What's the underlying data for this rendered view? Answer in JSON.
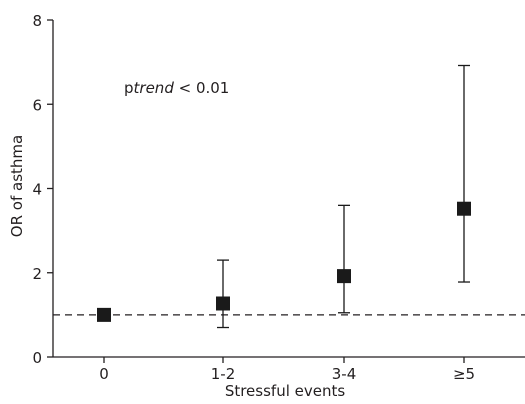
{
  "chart_data": {
    "type": "scatter",
    "title": "",
    "xlabel": "Stressful events",
    "ylabel": "OR of asthma",
    "categories": [
      "0",
      "1-2",
      "3-4",
      "≥5"
    ],
    "ylim": [
      0,
      8
    ],
    "yticks": [
      0,
      2,
      4,
      6,
      8
    ],
    "series": [
      {
        "values": [
          1.0,
          1.27,
          1.92,
          3.52
        ],
        "ci_lower": [
          1.0,
          0.7,
          1.05,
          1.78
        ],
        "ci_upper": [
          1.0,
          2.3,
          3.6,
          6.92
        ]
      }
    ],
    "reference_line": {
      "y": 1,
      "style": "dashed"
    },
    "annotation": {
      "prefix": "p",
      "italic": "trend",
      "suffix": " < 0.01"
    },
    "grid": false,
    "colors": {
      "marker": "#1a1a1a",
      "axis": "#231f20"
    }
  }
}
